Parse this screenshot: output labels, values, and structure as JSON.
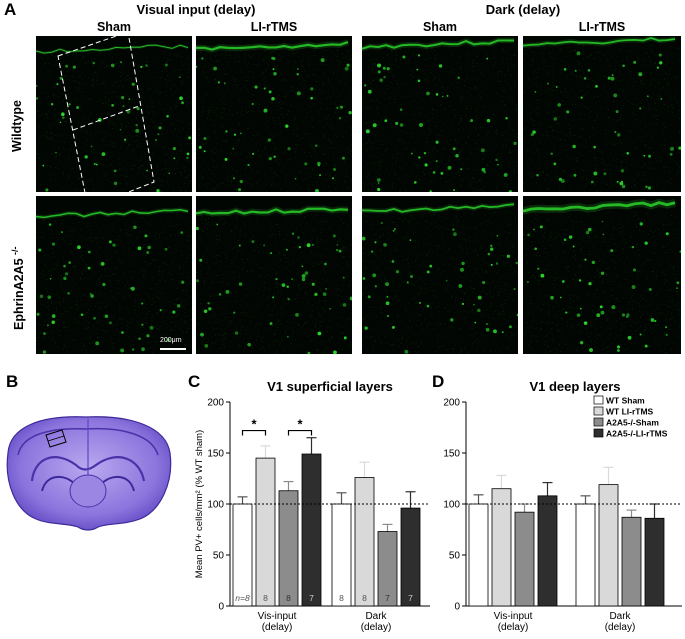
{
  "panel_letters": {
    "a": "A",
    "b": "B",
    "c": "C",
    "d": "D"
  },
  "panel_a": {
    "group_headers": [
      "Visual input (delay)",
      "Dark (delay)"
    ],
    "column_headers": [
      "Sham",
      "LI-rTMS",
      "Sham",
      "LI-rTMS"
    ],
    "row_labels": [
      "Wildtype",
      "EphrinA2A5"
    ],
    "row_label_superscript": "-/-",
    "scale_bar_label": "200μm"
  },
  "panel_c": {
    "title": "V1 superficial layers"
  },
  "panel_d": {
    "title": "V1 deep layers"
  },
  "colors": {
    "fluorescence": "#2bd42b",
    "brain_stain": "#6a4fc8",
    "bar_wt_sham": "#ffffff",
    "bar_wt_li": "#d9d9d9",
    "bar_a2a5_sham": "#8c8c8c",
    "bar_a2a5_li": "#2e2e2e"
  },
  "chart_data": [
    {
      "type": "bar",
      "title": "V1 superficial layers",
      "ylabel": "Mean PV+ cells/mm² (% WT sham)",
      "categories": [
        "Vis-input\n(delay)",
        "Dark\n(delay)"
      ],
      "ylim": [
        0,
        200
      ],
      "yticks": [
        0,
        50,
        100,
        150,
        200
      ],
      "reference_line": 100,
      "series": [
        {
          "name": "WT Sham",
          "values": [
            100,
            100
          ],
          "errors": [
            7,
            11
          ]
        },
        {
          "name": "WT LI-rTMS",
          "values": [
            145,
            126
          ],
          "errors": [
            12,
            15
          ]
        },
        {
          "name": "A2A5-/-Sham",
          "values": [
            113,
            73
          ],
          "errors": [
            9,
            7
          ]
        },
        {
          "name": "A2A5-/-LI-rTMS",
          "values": [
            149,
            96
          ],
          "errors": [
            16,
            16
          ]
        }
      ],
      "n_labels": [
        [
          "n=8",
          "8",
          "8",
          "7"
        ],
        [
          "8",
          "8",
          "7",
          "7"
        ]
      ],
      "significance": [
        {
          "category": 0,
          "from_series": 0,
          "to_series": 1,
          "label": "*"
        },
        {
          "category": 0,
          "from_series": 2,
          "to_series": 3,
          "label": "*"
        }
      ]
    },
    {
      "type": "bar",
      "title": "V1 deep layers",
      "categories": [
        "Vis-input\n(delay)",
        "Dark\n(delay)"
      ],
      "ylim": [
        0,
        200
      ],
      "yticks": [
        0,
        50,
        100,
        150,
        200
      ],
      "reference_line": 100,
      "legend_position": "top-right",
      "series": [
        {
          "name": "WT Sham",
          "values": [
            100,
            100
          ],
          "errors": [
            9,
            8
          ]
        },
        {
          "name": "WT LI-rTMS",
          "values": [
            115,
            119
          ],
          "errors": [
            13,
            17
          ]
        },
        {
          "name": "A2A5-/-Sham",
          "values": [
            92,
            87
          ],
          "errors": [
            8,
            7
          ]
        },
        {
          "name": "A2A5-/-LI-rTMS",
          "values": [
            108,
            86
          ],
          "errors": [
            13,
            14
          ]
        }
      ]
    }
  ]
}
